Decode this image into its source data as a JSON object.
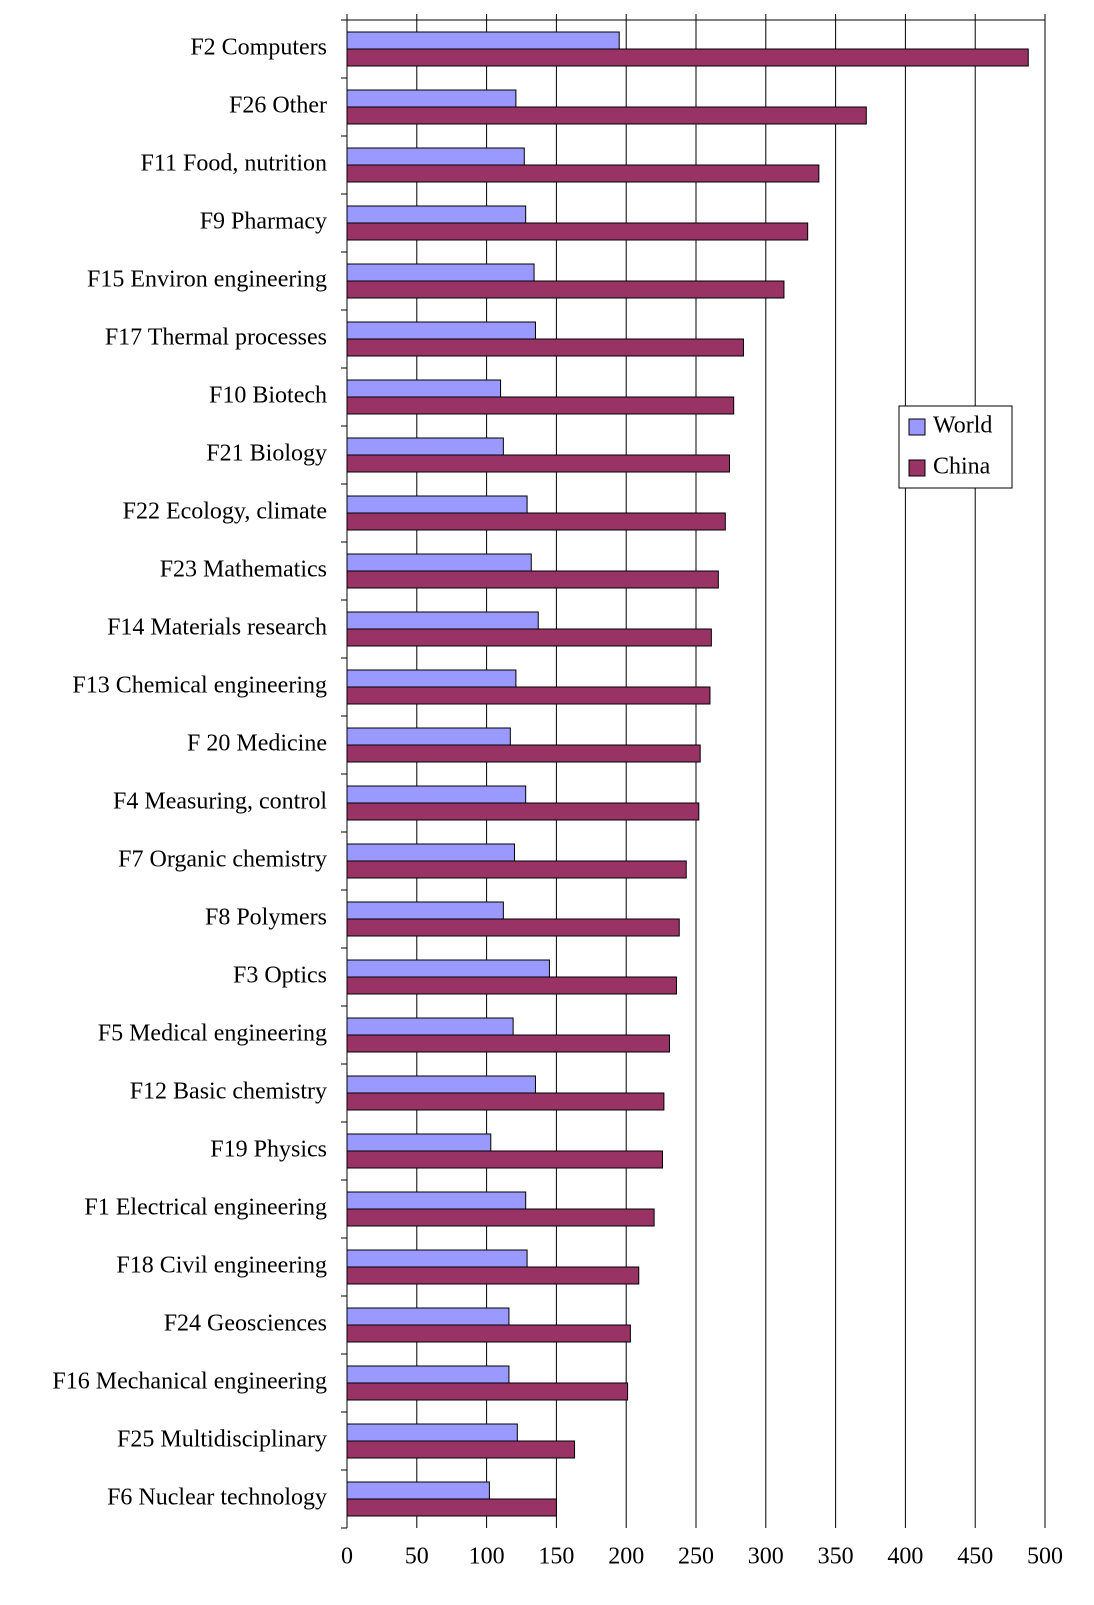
{
  "chart_data": {
    "type": "barh",
    "categories": [
      "F2 Computers",
      "F26 Other",
      "F11 Food, nutrition",
      "F9 Pharmacy",
      "F15 Environ engineering",
      "F17 Thermal processes",
      "F10 Biotech",
      "F21 Biology",
      "F22 Ecology, climate",
      "F23 Mathematics",
      "F14 Materials research",
      "F13 Chemical engineering",
      "F 20 Medicine",
      "F4 Measuring, control",
      "F7 Organic chemistry",
      "F8 Polymers",
      "F3 Optics",
      "F5 Medical engineering",
      "F12 Basic chemistry",
      "F19 Physics",
      "F1 Electrical engineering",
      "F18 Civil engineering",
      "F24 Geosciences",
      "F16 Mechanical engineering",
      "F25 Multidisciplinary",
      "F6 Nuclear technology"
    ],
    "series": [
      {
        "name": "World",
        "color": "#9999ff",
        "values": [
          195,
          121,
          127,
          128,
          134,
          135,
          110,
          112,
          129,
          132,
          137,
          121,
          117,
          128,
          120,
          112,
          145,
          119,
          135,
          103,
          128,
          129,
          116,
          116,
          122,
          102
        ]
      },
      {
        "name": "China",
        "color": "#993366",
        "values": [
          488,
          372,
          338,
          330,
          313,
          284,
          277,
          274,
          271,
          266,
          261,
          260,
          253,
          252,
          243,
          238,
          236,
          231,
          227,
          226,
          220,
          209,
          203,
          201,
          163,
          150
        ]
      }
    ],
    "xlim": [
      0,
      500
    ],
    "xticks": [
      0,
      50,
      100,
      150,
      200,
      250,
      300,
      350,
      400,
      450,
      500
    ],
    "grid": true,
    "legend": "right"
  }
}
